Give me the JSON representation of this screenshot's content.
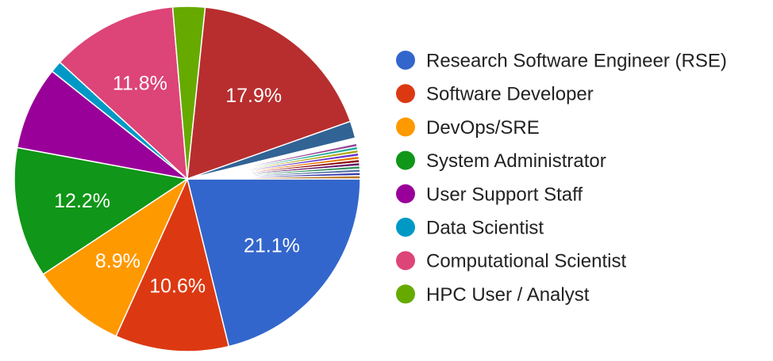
{
  "chart_data": {
    "type": "pie",
    "title": "",
    "slices": [
      {
        "name": "Research Software Engineer (RSE)",
        "value": 21.1,
        "color": "#3366cc",
        "label": "21.1%"
      },
      {
        "name": "Software Developer",
        "value": 10.6,
        "color": "#dc3912",
        "label": "10.6%"
      },
      {
        "name": "DevOps/SRE",
        "value": 8.9,
        "color": "#ff9900",
        "label": "8.9%"
      },
      {
        "name": "System Administrator",
        "value": 12.2,
        "color": "#109618",
        "label": "12.2%"
      },
      {
        "name": "User Support Staff",
        "value": 7.8,
        "color": "#990099",
        "label": ""
      },
      {
        "name": "Data Scientist",
        "value": 1.1,
        "color": "#0099c6",
        "label": ""
      },
      {
        "name": "Computational Scientist",
        "value": 11.8,
        "color": "#dd4477",
        "label": "11.8%"
      },
      {
        "name": "HPC User / Analyst",
        "value": 3.0,
        "color": "#66aa00",
        "label": ""
      },
      {
        "name": "",
        "value": 17.9,
        "color": "#b82e2e",
        "label": "17.9%"
      },
      {
        "name": "",
        "value": 1.6,
        "color": "#316395",
        "label": ""
      },
      {
        "name": "",
        "value": 0.5,
        "color": "#ffffff",
        "label": ""
      },
      {
        "name": "",
        "value": 0.3,
        "color": "#994499",
        "label": ""
      },
      {
        "name": "",
        "value": 0.3,
        "color": "#22aa99",
        "label": ""
      },
      {
        "name": "",
        "value": 0.3,
        "color": "#aaaa11",
        "label": ""
      },
      {
        "name": "",
        "value": 0.3,
        "color": "#6633cc",
        "label": ""
      },
      {
        "name": "",
        "value": 0.3,
        "color": "#e67300",
        "label": ""
      },
      {
        "name": "",
        "value": 0.3,
        "color": "#8b0707",
        "label": ""
      },
      {
        "name": "",
        "value": 0.3,
        "color": "#651067",
        "label": ""
      },
      {
        "name": "",
        "value": 0.3,
        "color": "#329262",
        "label": ""
      },
      {
        "name": "",
        "value": 0.3,
        "color": "#5574a6",
        "label": ""
      },
      {
        "name": "",
        "value": 0.3,
        "color": "#3b3eac",
        "label": ""
      },
      {
        "name": "",
        "value": 0.3,
        "color": "#b77322",
        "label": ""
      }
    ],
    "legend": [
      {
        "label": "Research Software Engineer (RSE)",
        "color": "#3366cc"
      },
      {
        "label": "Software Developer",
        "color": "#dc3912"
      },
      {
        "label": "DevOps/SRE",
        "color": "#ff9900"
      },
      {
        "label": "System Administrator",
        "color": "#109618"
      },
      {
        "label": "User Support Staff",
        "color": "#990099"
      },
      {
        "label": "Data Scientist",
        "color": "#0099c6"
      },
      {
        "label": "Computational Scientist",
        "color": "#dd4477"
      },
      {
        "label": "HPC User / Analyst",
        "color": "#66aa00"
      }
    ],
    "legend_position": "right"
  }
}
